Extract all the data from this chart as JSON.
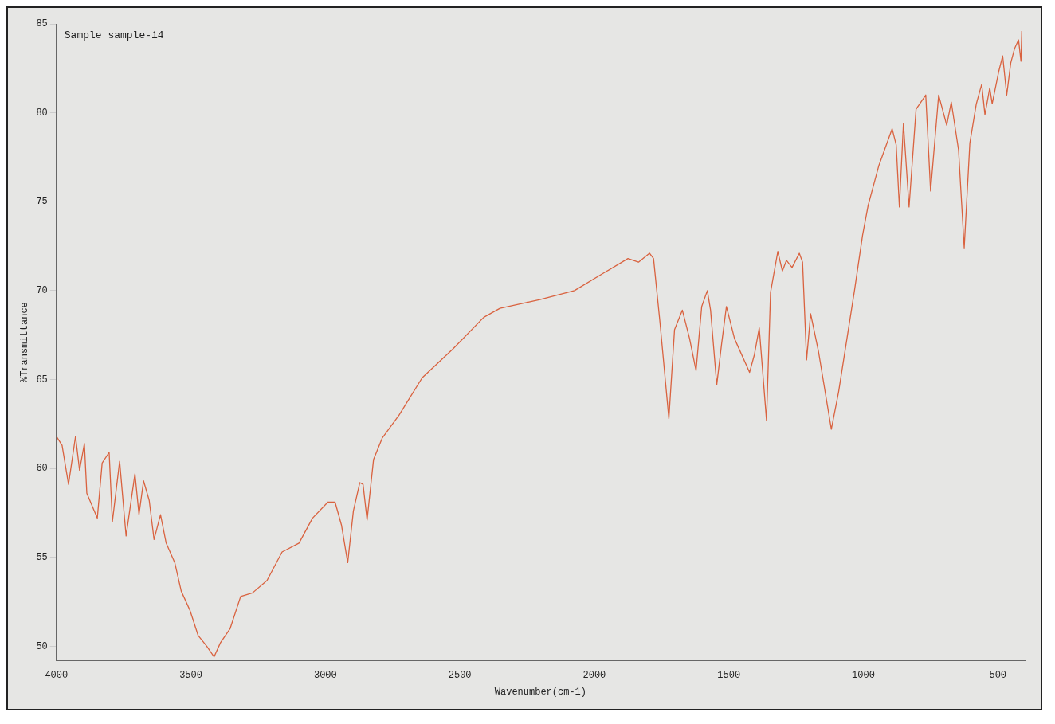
{
  "chart_data": {
    "type": "line",
    "xlabel": "Wavenumber(cm-1)",
    "ylabel": "%Transmittance",
    "annotations": [
      "Sample sample-14"
    ],
    "xlim": [
      4000,
      400
    ],
    "ylim": [
      49.2,
      85
    ],
    "xticks": [
      4000,
      3500,
      3000,
      2500,
      2000,
      1500,
      1000,
      500
    ],
    "yticks": [
      50,
      55,
      60,
      65,
      70,
      75,
      80,
      85
    ],
    "grid": false,
    "legend": false,
    "marker": "none",
    "line_style": "solid",
    "series": [
      {
        "color": "#d9623f",
        "x": [
          4000,
          3979,
          3955,
          3929,
          3914,
          3896,
          3887,
          3848,
          3830,
          3804,
          3792,
          3765,
          3741,
          3708,
          3693,
          3676,
          3655,
          3637,
          3613,
          3592,
          3560,
          3536,
          3503,
          3473,
          3441,
          3414,
          3390,
          3354,
          3315,
          3271,
          3217,
          3161,
          3098,
          3048,
          2991,
          2964,
          2940,
          2917,
          2896,
          2872,
          2860,
          2845,
          2821,
          2789,
          2726,
          2640,
          2527,
          2411,
          2351,
          2202,
          2074,
          1964,
          1875,
          1836,
          1795,
          1780,
          1756,
          1723,
          1702,
          1673,
          1646,
          1622,
          1601,
          1580,
          1568,
          1545,
          1527,
          1509,
          1479,
          1423,
          1405,
          1387,
          1360,
          1345,
          1318,
          1301,
          1286,
          1265,
          1238,
          1226,
          1211,
          1196,
          1167,
          1119,
          1092,
          1033,
          1003,
          982,
          943,
          893,
          878,
          866,
          851,
          830,
          804,
          768,
          750,
          720,
          690,
          673,
          646,
          625,
          604,
          580,
          560,
          548,
          530,
          521,
          497,
          482,
          467,
          452,
          438,
          423,
          414,
          411
        ],
        "values": [
          61.8,
          61.3,
          59.1,
          61.8,
          59.9,
          61.4,
          58.6,
          57.2,
          60.3,
          60.9,
          57.0,
          60.4,
          56.2,
          59.7,
          57.4,
          59.3,
          58.2,
          56.0,
          57.4,
          55.8,
          54.7,
          53.1,
          52.0,
          50.6,
          50.0,
          49.4,
          50.2,
          51.0,
          52.8,
          53.0,
          53.7,
          55.3,
          55.8,
          57.2,
          58.1,
          58.1,
          56.8,
          54.7,
          57.6,
          59.2,
          59.1,
          57.1,
          60.5,
          61.7,
          63.0,
          65.1,
          66.7,
          68.5,
          69.0,
          69.5,
          70.0,
          71.0,
          71.8,
          71.6,
          72.1,
          71.8,
          68.2,
          62.8,
          67.8,
          68.9,
          67.3,
          65.5,
          69.1,
          70.0,
          68.9,
          64.7,
          67.0,
          69.1,
          67.3,
          65.4,
          66.4,
          67.9,
          62.7,
          69.9,
          72.2,
          71.1,
          71.7,
          71.3,
          72.1,
          71.6,
          66.1,
          68.7,
          66.6,
          62.2,
          64.3,
          70.0,
          73.1,
          74.8,
          77.0,
          79.1,
          78.2,
          74.7,
          79.4,
          74.7,
          80.2,
          81.0,
          75.6,
          81.0,
          79.3,
          80.6,
          77.9,
          72.4,
          78.3,
          80.5,
          81.6,
          79.9,
          81.4,
          80.5,
          82.3,
          83.2,
          81.0,
          82.8,
          83.6,
          84.1,
          82.9,
          84.6
        ]
      }
    ]
  }
}
